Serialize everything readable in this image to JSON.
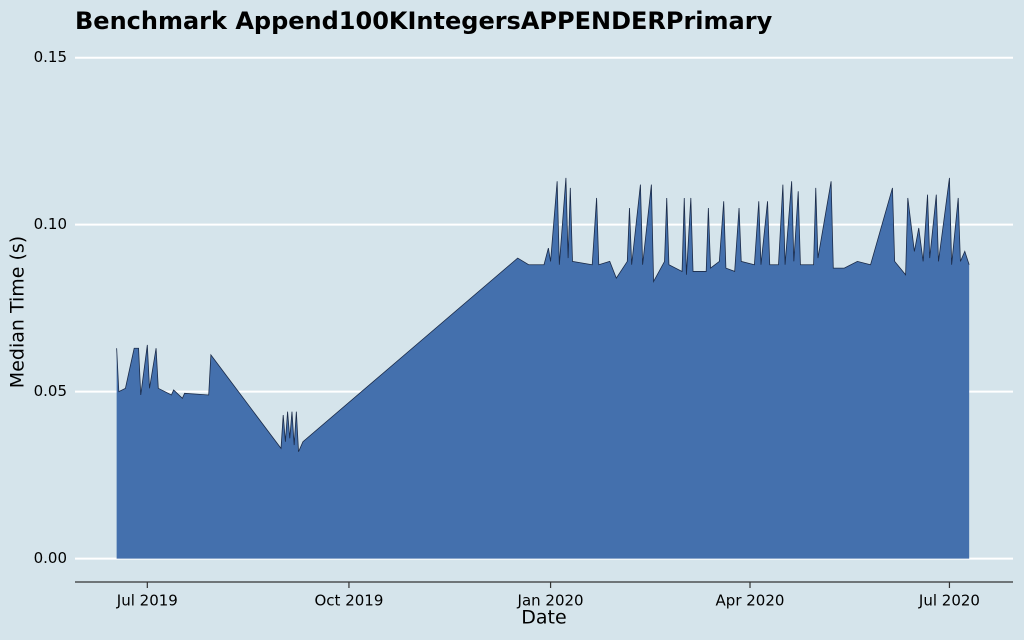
{
  "chart_data": {
    "type": "area",
    "title": "Benchmark Append100KIntegersAPPENDERPrimary",
    "x_label": "Date",
    "y_label": "Median Time (s)",
    "x": [
      "2019-06-17",
      "2019-06-18",
      "2019-06-21",
      "2019-06-25",
      "2019-06-27",
      "2019-06-28",
      "2019-07-01",
      "2019-07-02",
      "2019-07-05",
      "2019-07-06",
      "2019-07-12",
      "2019-07-13",
      "2019-07-17",
      "2019-07-18",
      "2019-07-29",
      "2019-07-30",
      "2019-08-31",
      "2019-09-01",
      "2019-09-02",
      "2019-09-03",
      "2019-09-04",
      "2019-09-05",
      "2019-09-06",
      "2019-09-07",
      "2019-09-08",
      "2019-09-10",
      "2019-12-17",
      "2019-12-22",
      "2019-12-29",
      "2019-12-31",
      "2020-01-01",
      "2020-01-04",
      "2020-01-05",
      "2020-01-08",
      "2020-01-09",
      "2020-01-10",
      "2020-01-11",
      "2020-01-20",
      "2020-01-22",
      "2020-01-23",
      "2020-01-28",
      "2020-01-31",
      "2020-02-05",
      "2020-02-06",
      "2020-02-07",
      "2020-02-11",
      "2020-02-12",
      "2020-02-16",
      "2020-02-17",
      "2020-02-22",
      "2020-02-23",
      "2020-02-24",
      "2020-03-01",
      "2020-03-02",
      "2020-03-03",
      "2020-03-05",
      "2020-03-06",
      "2020-03-12",
      "2020-03-13",
      "2020-03-14",
      "2020-03-18",
      "2020-03-20",
      "2020-03-21",
      "2020-03-25",
      "2020-03-27",
      "2020-03-28",
      "2020-04-03",
      "2020-04-05",
      "2020-04-06",
      "2020-04-09",
      "2020-04-10",
      "2020-04-14",
      "2020-04-16",
      "2020-04-17",
      "2020-04-20",
      "2020-04-21",
      "2020-04-23",
      "2020-04-24",
      "2020-04-30",
      "2020-05-01",
      "2020-05-02",
      "2020-05-08",
      "2020-05-09",
      "2020-05-14",
      "2020-05-20",
      "2020-05-26",
      "2020-06-05",
      "2020-06-06",
      "2020-06-11",
      "2020-06-12",
      "2020-06-15",
      "2020-06-17",
      "2020-06-19",
      "2020-06-21",
      "2020-06-22",
      "2020-06-25",
      "2020-06-26",
      "2020-07-01",
      "2020-07-02",
      "2020-07-05",
      "2020-07-06",
      "2020-07-08",
      "2020-07-10"
    ],
    "series": [
      {
        "name": "Median Time",
        "color": "#4470ad",
        "values": [
          0.063,
          0.05,
          0.051,
          0.063,
          0.063,
          0.049,
          0.064,
          0.051,
          0.063,
          0.051,
          0.049,
          0.0505,
          0.048,
          0.0495,
          0.049,
          0.061,
          0.033,
          0.043,
          0.035,
          0.044,
          0.036,
          0.044,
          0.034,
          0.044,
          0.032,
          0.035,
          0.09,
          0.088,
          0.088,
          0.093,
          0.089,
          0.113,
          0.088,
          0.114,
          0.09,
          0.111,
          0.089,
          0.088,
          0.108,
          0.088,
          0.089,
          0.084,
          0.089,
          0.105,
          0.088,
          0.112,
          0.088,
          0.112,
          0.083,
          0.089,
          0.108,
          0.088,
          0.086,
          0.108,
          0.085,
          0.108,
          0.086,
          0.086,
          0.105,
          0.087,
          0.089,
          0.107,
          0.087,
          0.086,
          0.105,
          0.089,
          0.088,
          0.107,
          0.088,
          0.107,
          0.088,
          0.088,
          0.112,
          0.088,
          0.113,
          0.089,
          0.11,
          0.088,
          0.088,
          0.111,
          0.09,
          0.113,
          0.087,
          0.087,
          0.089,
          0.088,
          0.111,
          0.089,
          0.085,
          0.108,
          0.092,
          0.099,
          0.089,
          0.109,
          0.09,
          0.109,
          0.089,
          0.114,
          0.088,
          0.108,
          0.089,
          0.092,
          0.088
        ]
      }
    ],
    "xlim": [
      "2019-05-29",
      "2020-07-30"
    ],
    "xticks": [
      {
        "value": "2019-07-01",
        "label": "Jul 2019"
      },
      {
        "value": "2019-10-01",
        "label": "Oct 2019"
      },
      {
        "value": "2020-01-01",
        "label": "Jan 2020"
      },
      {
        "value": "2020-04-01",
        "label": "Apr 2020"
      },
      {
        "value": "2020-07-01",
        "label": "Jul 2020"
      }
    ],
    "ylim": [
      -0.007,
      0.155
    ],
    "yticks": [
      {
        "value": 0,
        "label": "0.00"
      },
      {
        "value": 0.05,
        "label": "0.05"
      },
      {
        "value": 0.1,
        "label": "0.10"
      },
      {
        "value": 0.15,
        "label": "0.15"
      }
    ],
    "grid": true
  }
}
